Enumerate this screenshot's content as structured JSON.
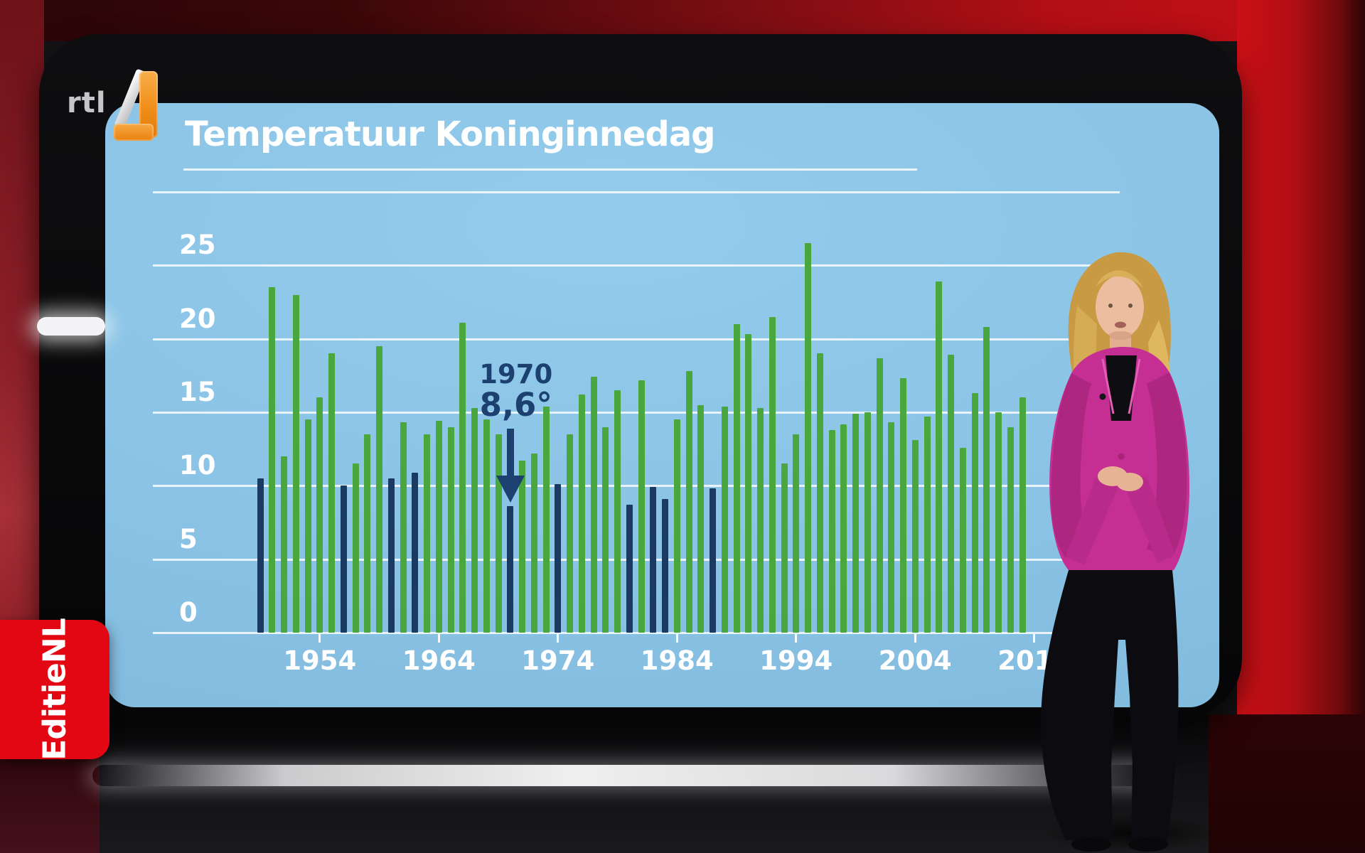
{
  "branding": {
    "channel_text": "rtl",
    "channel_number": "4",
    "channel_text_color": "#c6c6c8",
    "channel_accent_color": "#ef8c16",
    "program_name": "EditieNL",
    "program_box_color": "#e30613"
  },
  "studio": {
    "wall_color": "#c41016",
    "screen_bg_color": "#8ac3e5",
    "presenter_jacket_color": "#c52f94"
  },
  "chart_data": {
    "type": "bar",
    "title": "Temperatuur Koninginnedag",
    "unit": "°C",
    "xlabel": "",
    "ylabel": "",
    "ylim": [
      0,
      30
    ],
    "grid": true,
    "yticks": [
      0,
      5,
      10,
      15,
      20,
      25
    ],
    "ytick_labels": [
      "0",
      "5",
      "10",
      "15",
      "20",
      "25"
    ],
    "xtick_years": [
      1954,
      1964,
      1974,
      1984,
      1994,
      2004,
      2014
    ],
    "xtick_labels": [
      "1954",
      "1964",
      "1974",
      "1984",
      "1994",
      "2004",
      "2014"
    ],
    "start_year": 1949,
    "end_year": 2013,
    "values": [
      10.5,
      23.5,
      12,
      23,
      14.5,
      16,
      19,
      10,
      11.5,
      13.5,
      19.5,
      10.5,
      14.3,
      10.9,
      13.5,
      14.4,
      14,
      21.1,
      15.3,
      14.5,
      13.5,
      8.6,
      11.7,
      12.2,
      15.4,
      10.1,
      13.5,
      16.2,
      17.4,
      14,
      16.5,
      8.7,
      17.2,
      9.9,
      9.1,
      14.5,
      17.8,
      15.5,
      9.8,
      15.4,
      21,
      20.3,
      15.3,
      21.5,
      11.5,
      13.5,
      26.5,
      19,
      13.8,
      14.2,
      14.9,
      15,
      18.7,
      14.3,
      17.3,
      13.1,
      14.7,
      23.9,
      18.9,
      12.6,
      16.3,
      20.8,
      15,
      14,
      16
    ],
    "cold_years": [
      1949,
      1956,
      1960,
      1962,
      1970,
      1974,
      1980,
      1982,
      1983,
      1987
    ],
    "bar_color": "#4aa73d",
    "cold_bar_color": "#1b3a61",
    "gridline_color": "#ffffff",
    "annotation": {
      "line1": "1970",
      "line2": "8,6°",
      "year": 1970,
      "color": "#1c4170"
    }
  }
}
